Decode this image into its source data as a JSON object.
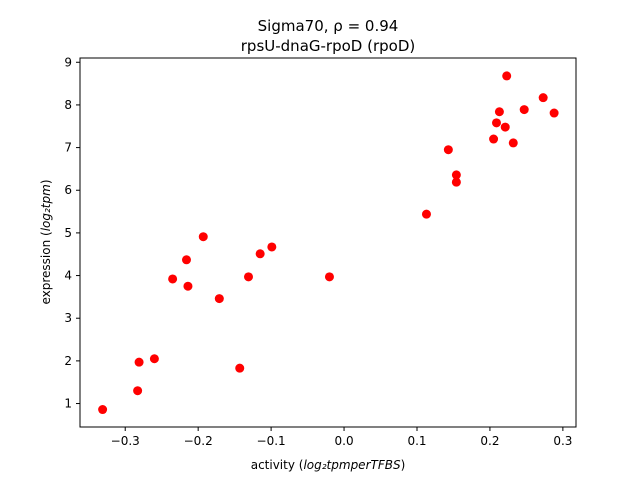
{
  "chart_data": {
    "type": "scatter",
    "title_line1": "Sigma70, ρ = 0.94",
    "title_line2": "rpsU-dnaG-rpoD (rpoD)",
    "xlabel_prefix": "activity (",
    "xlabel_math": "log₂tpmperTFBS",
    "xlabel_suffix": ")",
    "ylabel_prefix": "expression (",
    "ylabel_math": "log₂tpm",
    "ylabel_suffix": ")",
    "xlim": [
      -0.362,
      0.318
    ],
    "ylim": [
      0.45,
      9.1
    ],
    "xticks": [
      -0.3,
      -0.2,
      -0.1,
      0.0,
      0.1,
      0.2,
      0.3
    ],
    "xtick_labels": [
      "−0.3",
      "−0.2",
      "−0.1",
      "0.0",
      "0.1",
      "0.2",
      "0.3"
    ],
    "yticks": [
      1,
      2,
      3,
      4,
      5,
      6,
      7,
      8,
      9
    ],
    "ytick_labels": [
      "1",
      "2",
      "3",
      "4",
      "5",
      "6",
      "7",
      "8",
      "9"
    ],
    "grid": false,
    "marker_color": "#ff0000",
    "points": [
      {
        "x": -0.331,
        "y": 0.86
      },
      {
        "x": -0.283,
        "y": 1.3
      },
      {
        "x": -0.281,
        "y": 1.97
      },
      {
        "x": -0.26,
        "y": 2.05
      },
      {
        "x": -0.235,
        "y": 3.92
      },
      {
        "x": -0.216,
        "y": 4.37
      },
      {
        "x": -0.214,
        "y": 3.75
      },
      {
        "x": -0.193,
        "y": 4.91
      },
      {
        "x": -0.171,
        "y": 3.46
      },
      {
        "x": -0.143,
        "y": 1.83
      },
      {
        "x": -0.131,
        "y": 3.97
      },
      {
        "x": -0.115,
        "y": 4.51
      },
      {
        "x": -0.099,
        "y": 4.67
      },
      {
        "x": -0.02,
        "y": 3.97
      },
      {
        "x": 0.113,
        "y": 5.44
      },
      {
        "x": 0.143,
        "y": 6.95
      },
      {
        "x": 0.154,
        "y": 6.36
      },
      {
        "x": 0.154,
        "y": 6.19
      },
      {
        "x": 0.205,
        "y": 7.2
      },
      {
        "x": 0.209,
        "y": 7.58
      },
      {
        "x": 0.213,
        "y": 7.84
      },
      {
        "x": 0.221,
        "y": 7.48
      },
      {
        "x": 0.223,
        "y": 8.68
      },
      {
        "x": 0.232,
        "y": 7.11
      },
      {
        "x": 0.247,
        "y": 7.89
      },
      {
        "x": 0.273,
        "y": 8.17
      },
      {
        "x": 0.288,
        "y": 7.81
      }
    ]
  }
}
